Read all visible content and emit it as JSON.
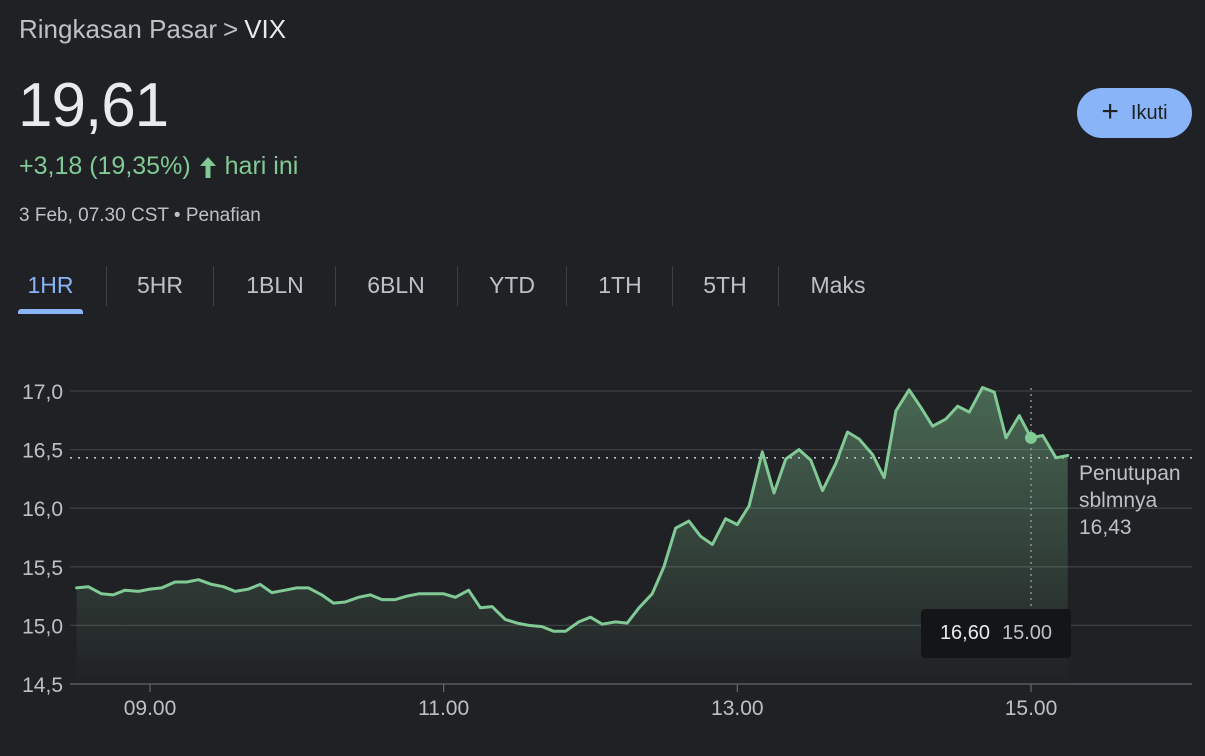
{
  "breadcrumb": {
    "parent": "Ringkasan Pasar",
    "separator": ">",
    "current": "VIX"
  },
  "quote": {
    "price": "19,61",
    "change": "+3,18 (19,35%)",
    "change_suffix": "hari ini",
    "timestamp": "3 Feb, 07.30 CST",
    "dot": "•",
    "disclaimer": "Penafian"
  },
  "follow_button": {
    "icon": "plus-icon",
    "label": "Ikuti"
  },
  "tabs": [
    {
      "label": "1HR",
      "active": true
    },
    {
      "label": "5HR"
    },
    {
      "label": "1BLN"
    },
    {
      "label": "6BLN"
    },
    {
      "label": "YTD"
    },
    {
      "label": "1TH"
    },
    {
      "label": "5TH"
    },
    {
      "label": "Maks"
    }
  ],
  "colors": {
    "accent": "#8ab4f8",
    "positive": "#81c995",
    "background": "#202124"
  },
  "tooltip": {
    "value": "16,60",
    "time": "15.00"
  },
  "previous_close": {
    "label_line1": "Penutupan",
    "label_line2": "sblmnya",
    "value": "16,43"
  },
  "chart_data": {
    "type": "area",
    "title": "",
    "xlabel": "",
    "ylabel": "",
    "x_tick_labels": [
      "09.00",
      "11.00",
      "13.00",
      "15.00"
    ],
    "x_ticks": [
      9,
      11,
      13,
      15
    ],
    "y_tick_labels": [
      "17,0",
      "16,5",
      "16,0",
      "15,5",
      "15,0",
      "14,5"
    ],
    "y_ticks": [
      17.0,
      16.5,
      16.0,
      15.5,
      15.0,
      14.5
    ],
    "xlim": [
      8.5,
      16.1
    ],
    "ylim": [
      14.5,
      17.0
    ],
    "grid": true,
    "previous_close": 16.43,
    "hover": {
      "x": 15.0,
      "y": 16.6
    },
    "series": [
      {
        "x": [
          8.5,
          8.58,
          8.67,
          8.75,
          8.83,
          8.92,
          9.0,
          9.08,
          9.17,
          9.25,
          9.33,
          9.42,
          9.5,
          9.58,
          9.67,
          9.75,
          9.83,
          9.92,
          10.0,
          10.08,
          10.17,
          10.25,
          10.33,
          10.42,
          10.5,
          10.58,
          10.67,
          10.75,
          10.83,
          10.92,
          11.0,
          11.08,
          11.17,
          11.25,
          11.33,
          11.42,
          11.5,
          11.58,
          11.67,
          11.75,
          11.83,
          11.92,
          12.0,
          12.08,
          12.17,
          12.25,
          12.33,
          12.42,
          12.5,
          12.58,
          12.67,
          12.75,
          12.83,
          12.92,
          13.0,
          13.08,
          13.17,
          13.25,
          13.33,
          13.42,
          13.5,
          13.58,
          13.67,
          13.75,
          13.83,
          13.92,
          14.0,
          14.08,
          14.17,
          14.25,
          14.33,
          14.42,
          14.5,
          14.58,
          14.67,
          14.75,
          14.83,
          14.92,
          15.0,
          15.08,
          15.17,
          15.25
        ],
        "y": [
          15.32,
          15.33,
          15.27,
          15.26,
          15.3,
          15.29,
          15.31,
          15.32,
          15.37,
          15.37,
          15.39,
          15.35,
          15.33,
          15.29,
          15.31,
          15.35,
          15.28,
          15.3,
          15.32,
          15.32,
          15.26,
          15.19,
          15.2,
          15.24,
          15.26,
          15.22,
          15.22,
          15.25,
          15.27,
          15.27,
          15.27,
          15.24,
          15.3,
          15.15,
          15.16,
          15.05,
          15.02,
          15.0,
          14.99,
          14.95,
          14.95,
          15.03,
          15.07,
          15.01,
          15.03,
          15.02,
          15.15,
          15.27,
          15.5,
          15.83,
          15.89,
          15.76,
          15.69,
          15.91,
          15.86,
          16.02,
          16.48,
          16.13,
          16.42,
          16.5,
          16.41,
          16.15,
          16.38,
          16.65,
          16.59,
          16.46,
          16.26,
          16.83,
          17.01,
          16.86,
          16.7,
          16.76,
          16.87,
          16.82,
          17.03,
          16.99,
          16.6,
          16.79,
          16.6,
          16.62,
          16.43,
          16.45
        ]
      }
    ]
  }
}
